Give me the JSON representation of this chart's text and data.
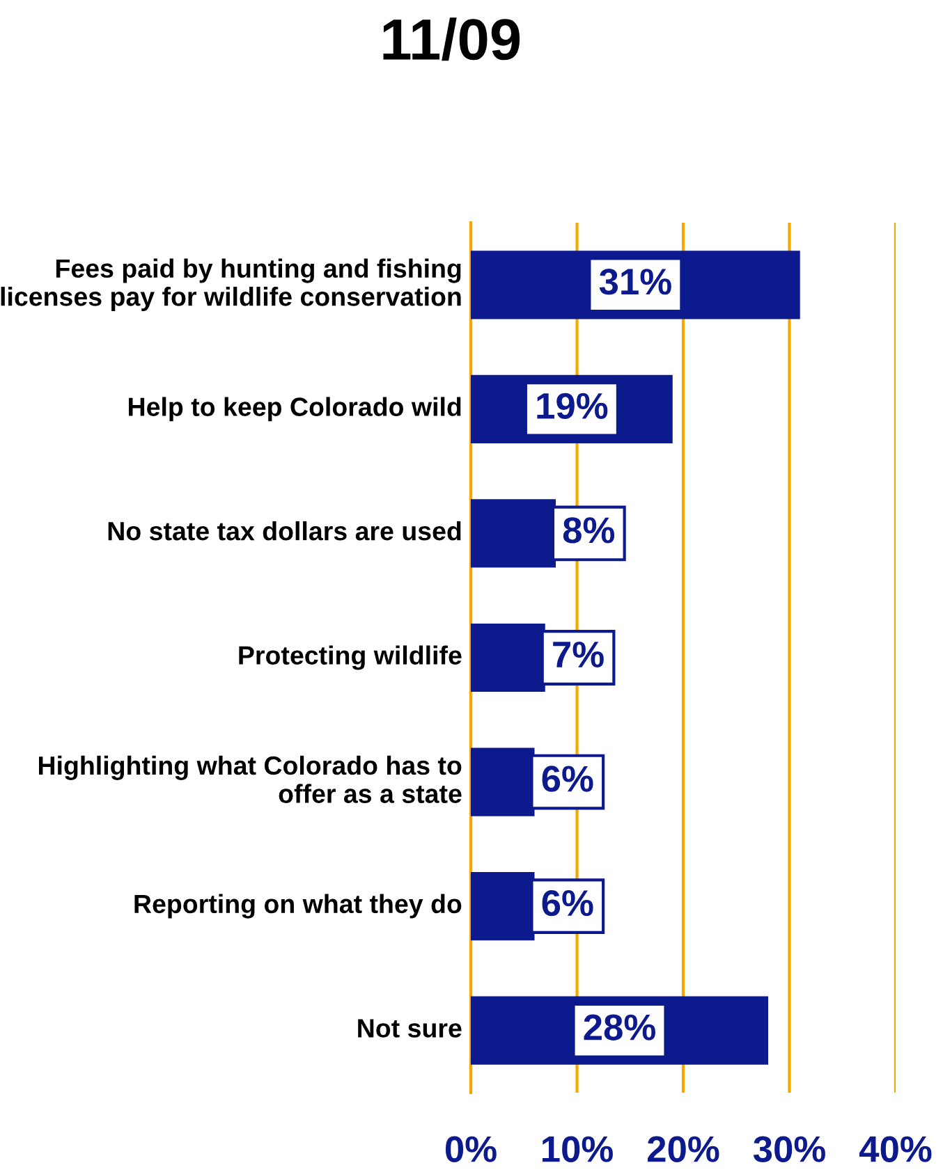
{
  "chart_data": {
    "type": "bar",
    "orientation": "horizontal",
    "title": "11/09",
    "categories": [
      "Fees paid by hunting and fishing licenses pay for wildlife conservation",
      "Help to keep Colorado wild",
      "No state tax dollars are used",
      "Protecting wildlife",
      "Highlighting what Colorado has to offer as a state",
      "Reporting on what they do",
      "Not sure"
    ],
    "values": [
      31,
      19,
      8,
      7,
      6,
      6,
      28
    ],
    "value_labels": [
      "31%",
      "19%",
      "8%",
      "7%",
      "6%",
      "6%",
      "28%"
    ],
    "color": "#0c1a8e",
    "xlim": [
      0,
      40
    ],
    "xticks": [
      {
        "value": 0,
        "label": "0%"
      },
      {
        "value": 10,
        "label": "10%"
      },
      {
        "value": 20,
        "label": "20%"
      },
      {
        "value": 30,
        "label": "30%"
      },
      {
        "value": 40,
        "label": "40%"
      }
    ],
    "grid": "x"
  }
}
